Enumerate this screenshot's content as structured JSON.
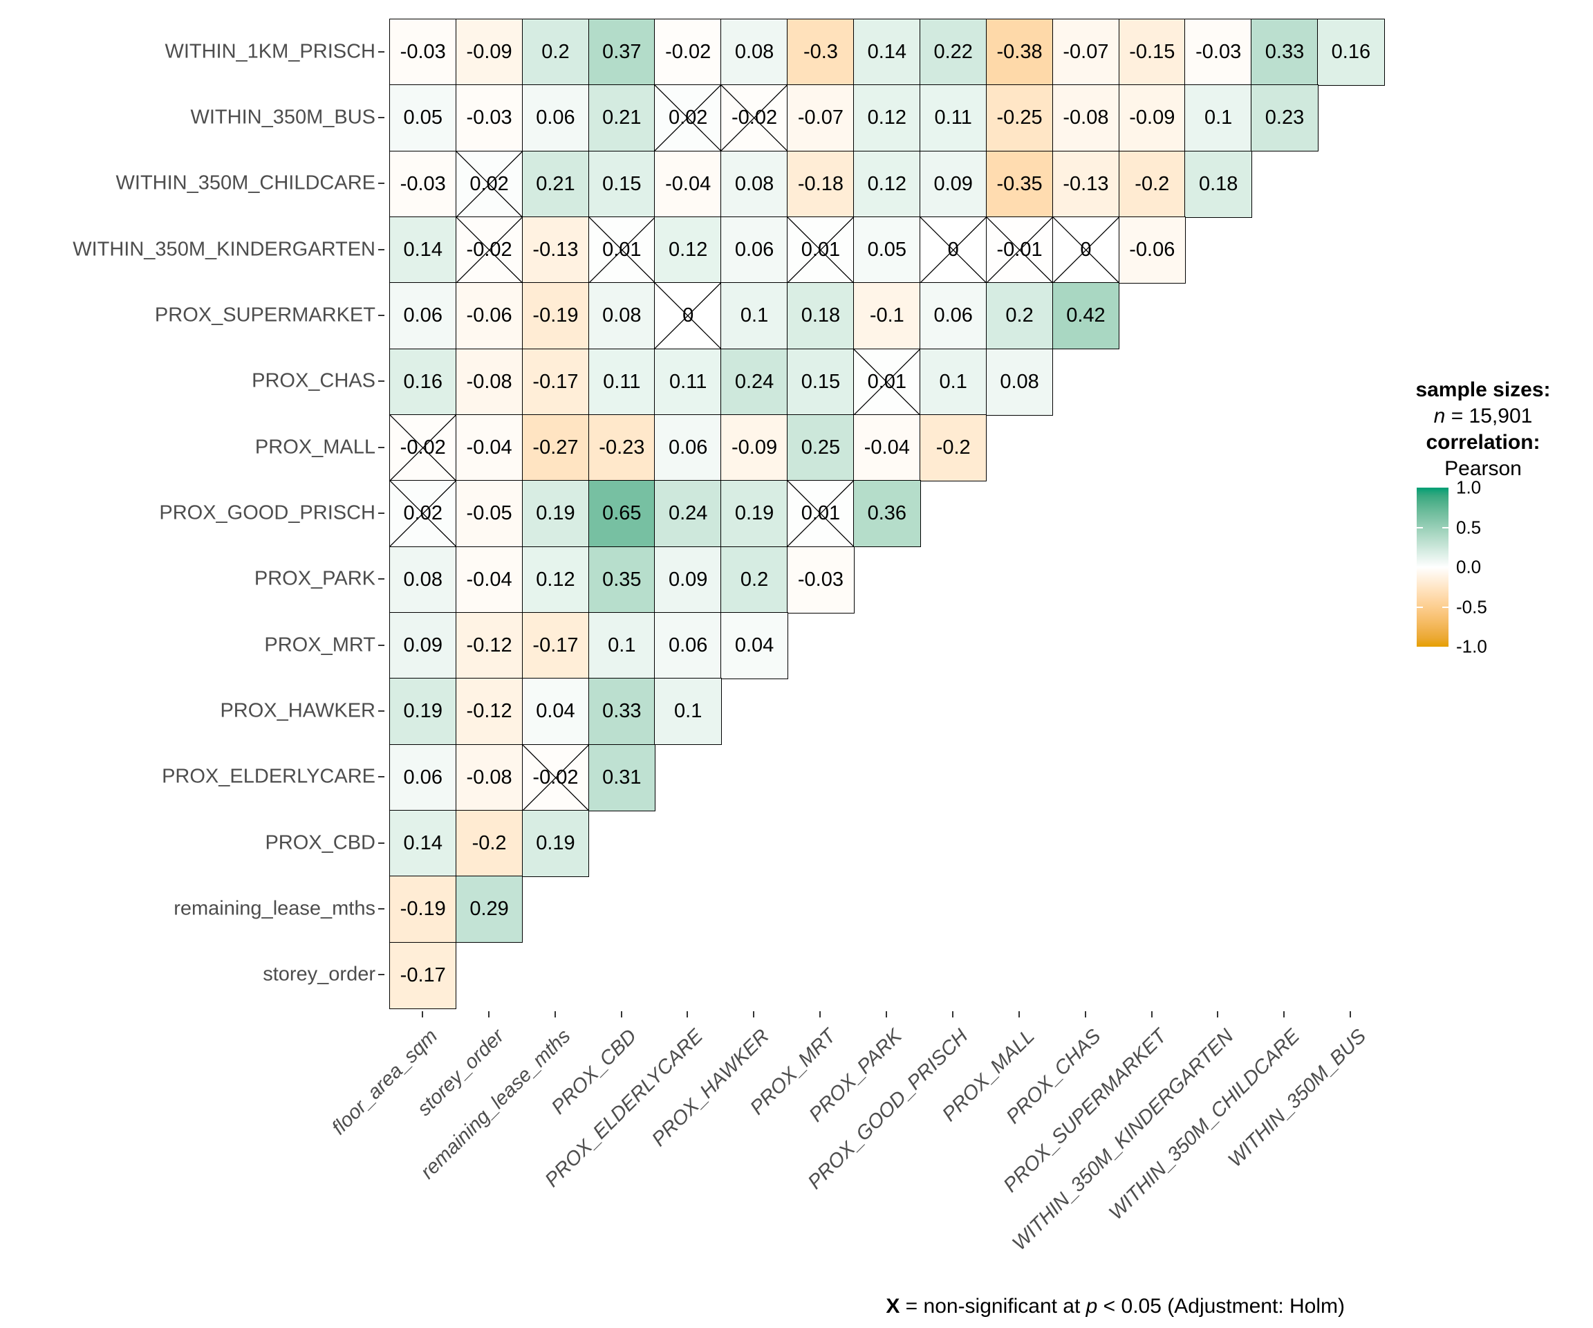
{
  "colors": {
    "high": "#009E73",
    "mid": "#FFFFFF",
    "low": "#E69F00",
    "axis_text": "#4D4D4D",
    "cell_text": "#000000",
    "border": "#000000"
  },
  "legend": {
    "sample_sizes_title": "sample sizes:",
    "n_symbol": "n",
    "n_value": " = 15,901",
    "correlation_title": "correlation:",
    "method": "Pearson",
    "ticks": [
      "1.0",
      "0.5",
      "0.0",
      "-0.5",
      "-1.0"
    ]
  },
  "caption": {
    "prefix": "X",
    "middle": " = non-significant at ",
    "p": "p",
    "suffix": " < 0.05 (Adjustment: Holm)"
  },
  "chart_data": {
    "type": "heatmap",
    "subtype": "lower-triangle-correlation-matrix",
    "method": "Pearson",
    "n": 15901,
    "colorscale": {
      "low": -1,
      "high": 1,
      "low_color": "#E69F00",
      "mid_color": "#FFFFFF",
      "high_color": "#009E73"
    },
    "x_categories": [
      "floor_area_sqm",
      "storey_order",
      "remaining_lease_mths",
      "PROX_CBD",
      "PROX_ELDERLYCARE",
      "PROX_HAWKER",
      "PROX_MRT",
      "PROX_PARK",
      "PROX_GOOD_PRISCH",
      "PROX_MALL",
      "PROX_CHAS",
      "PROX_SUPERMARKET",
      "WITHIN_350M_KINDERGARTEN",
      "WITHIN_350M_CHILDCARE",
      "WITHIN_350M_BUS"
    ],
    "rows": [
      {
        "label": "WITHIN_1KM_PRISCH",
        "values": [
          "-0.03",
          "-0.09",
          "0.2",
          "0.37",
          "-0.02",
          "0.08",
          "-0.3",
          "0.14",
          "0.22",
          "-0.38",
          "-0.07",
          "-0.15",
          "-0.03",
          "0.33",
          "0.16"
        ],
        "non_significant_cols": []
      },
      {
        "label": "WITHIN_350M_BUS",
        "values": [
          "0.05",
          "-0.03",
          "0.06",
          "0.21",
          "0.02",
          "-0.02",
          "-0.07",
          "0.12",
          "0.11",
          "-0.25",
          "-0.08",
          "-0.09",
          "0.1",
          "0.23"
        ],
        "non_significant_cols": [
          4,
          5
        ]
      },
      {
        "label": "WITHIN_350M_CHILDCARE",
        "values": [
          "-0.03",
          "0.02",
          "0.21",
          "0.15",
          "-0.04",
          "0.08",
          "-0.18",
          "0.12",
          "0.09",
          "-0.35",
          "-0.13",
          "-0.2",
          "0.18"
        ],
        "non_significant_cols": [
          1
        ]
      },
      {
        "label": "WITHIN_350M_KINDERGARTEN",
        "values": [
          "0.14",
          "-0.02",
          "-0.13",
          "0.01",
          "0.12",
          "0.06",
          "0.01",
          "0.05",
          "0",
          "-0.01",
          "0",
          "-0.06"
        ],
        "non_significant_cols": [
          1,
          3,
          6,
          8,
          9,
          10
        ]
      },
      {
        "label": "PROX_SUPERMARKET",
        "values": [
          "0.06",
          "-0.06",
          "-0.19",
          "0.08",
          "0",
          "0.1",
          "0.18",
          "-0.1",
          "0.06",
          "0.2",
          "0.42"
        ],
        "non_significant_cols": [
          4
        ]
      },
      {
        "label": "PROX_CHAS",
        "values": [
          "0.16",
          "-0.08",
          "-0.17",
          "0.11",
          "0.11",
          "0.24",
          "0.15",
          "0.01",
          "0.1",
          "0.08"
        ],
        "non_significant_cols": [
          7
        ]
      },
      {
        "label": "PROX_MALL",
        "values": [
          "-0.02",
          "-0.04",
          "-0.27",
          "-0.23",
          "0.06",
          "-0.09",
          "0.25",
          "-0.04",
          "-0.2"
        ],
        "non_significant_cols": [
          0
        ]
      },
      {
        "label": "PROX_GOOD_PRISCH",
        "values": [
          "0.02",
          "-0.05",
          "0.19",
          "0.65",
          "0.24",
          "0.19",
          "0.01",
          "0.36"
        ],
        "non_significant_cols": [
          0,
          6
        ]
      },
      {
        "label": "PROX_PARK",
        "values": [
          "0.08",
          "-0.04",
          "0.12",
          "0.35",
          "0.09",
          "0.2",
          "-0.03"
        ],
        "non_significant_cols": []
      },
      {
        "label": "PROX_MRT",
        "values": [
          "0.09",
          "-0.12",
          "-0.17",
          "0.1",
          "0.06",
          "0.04"
        ],
        "non_significant_cols": []
      },
      {
        "label": "PROX_HAWKER",
        "values": [
          "0.19",
          "-0.12",
          "0.04",
          "0.33",
          "0.1"
        ],
        "non_significant_cols": []
      },
      {
        "label": "PROX_ELDERLYCARE",
        "values": [
          "0.06",
          "-0.08",
          "-0.02",
          "0.31"
        ],
        "non_significant_cols": [
          2
        ]
      },
      {
        "label": "PROX_CBD",
        "values": [
          "0.14",
          "-0.2",
          "0.19"
        ],
        "non_significant_cols": []
      },
      {
        "label": "remaining_lease_mths",
        "values": [
          "-0.19",
          "0.29"
        ],
        "non_significant_cols": []
      },
      {
        "label": "storey_order",
        "values": [
          "-0.17"
        ],
        "non_significant_cols": []
      }
    ]
  }
}
